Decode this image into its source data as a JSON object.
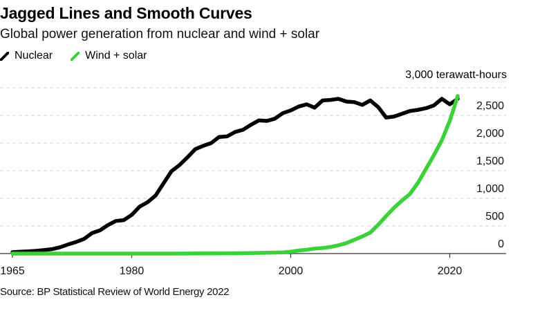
{
  "header": {
    "title": "Jagged Lines and Smooth Curves",
    "subtitle": "Global power generation from nuclear and wind + solar"
  },
  "legend": [
    {
      "label": "Nuclear",
      "color": "#000000"
    },
    {
      "label": "Wind + solar",
      "color": "#3ad13a"
    }
  ],
  "footer": {
    "source": "Source: BP Statistical Review of World Energy 2022"
  },
  "chart_data": {
    "type": "line",
    "title": "Jagged Lines and Smooth Curves",
    "subtitle": "Global power generation from nuclear and wind + solar",
    "xlabel": "",
    "ylabel": "terawatt-hours",
    "unit_label": "3,000 terawatt-hours",
    "xlim": [
      1965,
      2027
    ],
    "ylim": [
      0,
      3000
    ],
    "x_ticks": [
      1965,
      1980,
      2000,
      2020
    ],
    "x_tick_labels": [
      "1965",
      "1980",
      "2000",
      "2020"
    ],
    "y_ticks": [
      0,
      500,
      1000,
      1500,
      2000,
      2500,
      3000
    ],
    "y_tick_labels": [
      "0",
      "500",
      "1,000",
      "1,500",
      "2,000",
      "2,500",
      "3,000 terawatt-hours"
    ],
    "y_axis_side": "right",
    "grid": "horizontal-dashed",
    "legend_position": "top-left",
    "series": [
      {
        "name": "Nuclear",
        "color": "#000000",
        "x": [
          1965,
          1966,
          1967,
          1968,
          1969,
          1970,
          1971,
          1972,
          1973,
          1974,
          1975,
          1976,
          1977,
          1978,
          1979,
          1980,
          1981,
          1982,
          1983,
          1984,
          1985,
          1986,
          1987,
          1988,
          1989,
          1990,
          1991,
          1992,
          1993,
          1994,
          1995,
          1996,
          1997,
          1998,
          1999,
          2000,
          2001,
          2002,
          2003,
          2004,
          2005,
          2006,
          2007,
          2008,
          2009,
          2010,
          2011,
          2012,
          2013,
          2014,
          2015,
          2016,
          2017,
          2018,
          2019,
          2020,
          2021
        ],
        "values": [
          25,
          35,
          40,
          50,
          65,
          80,
          115,
          165,
          210,
          265,
          370,
          420,
          515,
          590,
          605,
          700,
          850,
          930,
          1050,
          1270,
          1490,
          1600,
          1740,
          1890,
          1950,
          2000,
          2110,
          2120,
          2200,
          2240,
          2330,
          2410,
          2400,
          2440,
          2540,
          2590,
          2660,
          2700,
          2640,
          2770,
          2780,
          2800,
          2750,
          2740,
          2690,
          2770,
          2650,
          2460,
          2480,
          2530,
          2580,
          2600,
          2630,
          2680,
          2800,
          2700,
          2800
        ]
      },
      {
        "name": "Wind + solar",
        "color": "#3ad13a",
        "x": [
          1965,
          1970,
          1975,
          1980,
          1985,
          1990,
          1993,
          1995,
          1997,
          1999,
          2000,
          2001,
          2002,
          2003,
          2004,
          2005,
          2006,
          2007,
          2008,
          2009,
          2010,
          2011,
          2012,
          2013,
          2014,
          2015,
          2016,
          2017,
          2018,
          2019,
          2020,
          2021
        ],
        "values": [
          0,
          0,
          0,
          0,
          0,
          2,
          5,
          10,
          15,
          20,
          35,
          55,
          70,
          90,
          100,
          120,
          150,
          190,
          250,
          310,
          380,
          520,
          680,
          830,
          960,
          1080,
          1280,
          1530,
          1780,
          2050,
          2400,
          2850
        ]
      }
    ]
  }
}
